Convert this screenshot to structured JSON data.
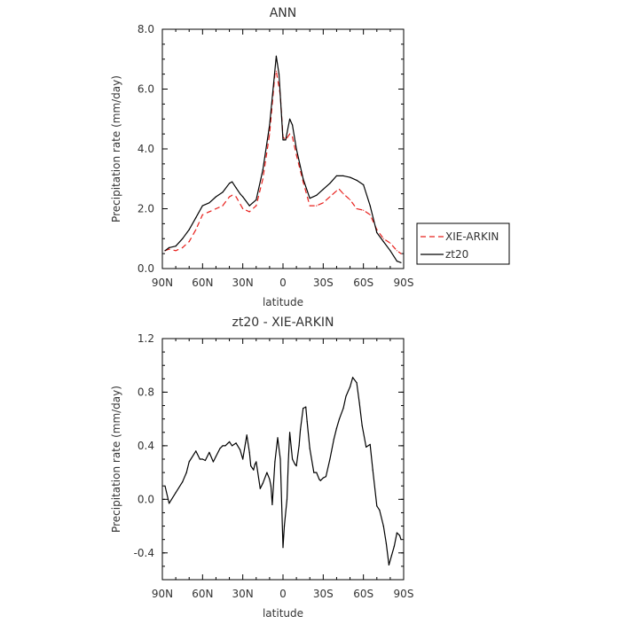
{
  "chart_data": [
    {
      "type": "line",
      "title": "ANN",
      "xlabel": "latitude",
      "ylabel": "Precipitation rate (mm/day)",
      "xlim": [
        90,
        -90
      ],
      "ylim": [
        0,
        8
      ],
      "x_ticks": [
        {
          "value": 90,
          "label": "90N"
        },
        {
          "value": 60,
          "label": "60N"
        },
        {
          "value": 30,
          "label": "30N"
        },
        {
          "value": 0,
          "label": "0"
        },
        {
          "value": -30,
          "label": "30S"
        },
        {
          "value": -60,
          "label": "60S"
        },
        {
          "value": -90,
          "label": "90S"
        }
      ],
      "y_ticks": [
        {
          "value": 0,
          "label": "0.0"
        },
        {
          "value": 2,
          "label": "2.0"
        },
        {
          "value": 4,
          "label": "4.0"
        },
        {
          "value": 6,
          "label": "6.0"
        },
        {
          "value": 8,
          "label": "8.0"
        }
      ],
      "legend": "right",
      "series": [
        {
          "name": "XIE-ARKIN",
          "color": "#e8201c",
          "dash": "dashed",
          "x": [
            88,
            85,
            80,
            75,
            70,
            65,
            60,
            55,
            50,
            45,
            40,
            38,
            35,
            30,
            25,
            20,
            15,
            10,
            6,
            5,
            2,
            0,
            -2,
            -5,
            -7,
            -10,
            -15,
            -20,
            -25,
            -30,
            -35,
            -40,
            -42,
            -45,
            -50,
            -55,
            -60,
            -65,
            -70,
            -75,
            -80,
            -85,
            -88
          ],
          "y": [
            0.6,
            0.65,
            0.6,
            0.7,
            0.9,
            1.3,
            1.8,
            1.9,
            2.0,
            2.1,
            2.4,
            2.45,
            2.4,
            2.0,
            1.9,
            2.1,
            3.0,
            4.5,
            6.5,
            6.6,
            5.8,
            4.4,
            4.3,
            4.5,
            4.4,
            3.8,
            2.9,
            2.1,
            2.1,
            2.2,
            2.4,
            2.6,
            2.65,
            2.5,
            2.3,
            2.0,
            1.95,
            1.8,
            1.3,
            1.0,
            0.85,
            0.6,
            0.5
          ]
        },
        {
          "name": "zt20",
          "color": "#000000",
          "dash": "solid",
          "x": [
            88,
            85,
            80,
            75,
            70,
            65,
            60,
            55,
            50,
            45,
            40,
            38,
            35,
            32,
            30,
            25,
            20,
            15,
            10,
            5,
            3,
            0,
            -2,
            -5,
            -7,
            -10,
            -15,
            -20,
            -25,
            -30,
            -35,
            -40,
            -45,
            -50,
            -55,
            -60,
            -65,
            -70,
            -75,
            -80,
            -85,
            -88
          ],
          "y": [
            0.6,
            0.7,
            0.75,
            1.0,
            1.3,
            1.7,
            2.1,
            2.2,
            2.4,
            2.55,
            2.85,
            2.9,
            2.7,
            2.5,
            2.4,
            2.1,
            2.3,
            3.3,
            4.8,
            7.1,
            6.5,
            4.3,
            4.3,
            5.0,
            4.8,
            4.0,
            3.0,
            2.35,
            2.45,
            2.65,
            2.85,
            3.1,
            3.1,
            3.05,
            2.95,
            2.8,
            2.1,
            1.2,
            0.9,
            0.6,
            0.25,
            0.2
          ]
        }
      ]
    },
    {
      "type": "line",
      "title": "zt20 - XIE-ARKIN",
      "xlabel": "latitude",
      "ylabel": "Precipitation rate (mm/day)",
      "xlim": [
        90,
        -90
      ],
      "ylim": [
        -0.6,
        1.2
      ],
      "x_ticks": [
        {
          "value": 90,
          "label": "90N"
        },
        {
          "value": 60,
          "label": "60N"
        },
        {
          "value": 30,
          "label": "30N"
        },
        {
          "value": 0,
          "label": "0"
        },
        {
          "value": -30,
          "label": "30S"
        },
        {
          "value": -60,
          "label": "60S"
        },
        {
          "value": -90,
          "label": "90S"
        }
      ],
      "y_ticks": [
        {
          "value": -0.4,
          "label": "-0.4"
        },
        {
          "value": 0,
          "label": "0.0"
        },
        {
          "value": 0.4,
          "label": "0.4"
        },
        {
          "value": 0.8,
          "label": "0.8"
        },
        {
          "value": 1.2,
          "label": "1.2"
        }
      ],
      "series": [
        {
          "color": "#000000",
          "dash": "solid",
          "x": [
            88,
            85,
            80,
            75,
            72,
            70,
            65,
            62,
            60,
            58,
            55,
            52,
            50,
            47,
            45,
            43,
            40,
            38,
            35,
            32,
            30,
            28,
            27,
            25,
            24,
            22,
            21,
            20,
            17,
            15,
            12,
            10,
            9,
            8,
            6,
            4,
            2,
            0,
            -1,
            -3,
            -4,
            -5,
            -7,
            -9,
            -10,
            -12,
            -13,
            -15,
            -17,
            -18,
            -20,
            -23,
            -25,
            -27,
            -28,
            -30,
            -32,
            -35,
            -38,
            -40,
            -42,
            -45,
            -47,
            -50,
            -52,
            -55,
            -57,
            -59,
            -62,
            -65,
            -67,
            -70,
            -72,
            -75,
            -77,
            -79,
            -81,
            -83,
            -85,
            -87,
            -88
          ],
          "y": [
            0.1,
            -0.03,
            0.05,
            0.13,
            0.2,
            0.28,
            0.36,
            0.3,
            0.3,
            0.29,
            0.35,
            0.28,
            0.32,
            0.38,
            0.4,
            0.4,
            0.43,
            0.4,
            0.42,
            0.37,
            0.3,
            0.42,
            0.48,
            0.35,
            0.25,
            0.22,
            0.26,
            0.28,
            0.08,
            0.12,
            0.2,
            0.15,
            0.1,
            -0.04,
            0.28,
            0.46,
            0.3,
            -0.36,
            -0.2,
            0.0,
            0.28,
            0.5,
            0.3,
            0.26,
            0.25,
            0.4,
            0.52,
            0.68,
            0.69,
            0.58,
            0.38,
            0.2,
            0.2,
            0.15,
            0.14,
            0.16,
            0.17,
            0.3,
            0.45,
            0.53,
            0.6,
            0.68,
            0.77,
            0.84,
            0.91,
            0.87,
            0.72,
            0.55,
            0.39,
            0.41,
            0.22,
            -0.05,
            -0.08,
            -0.2,
            -0.33,
            -0.49,
            -0.42,
            -0.35,
            -0.25,
            -0.27,
            -0.3
          ]
        }
      ]
    }
  ]
}
